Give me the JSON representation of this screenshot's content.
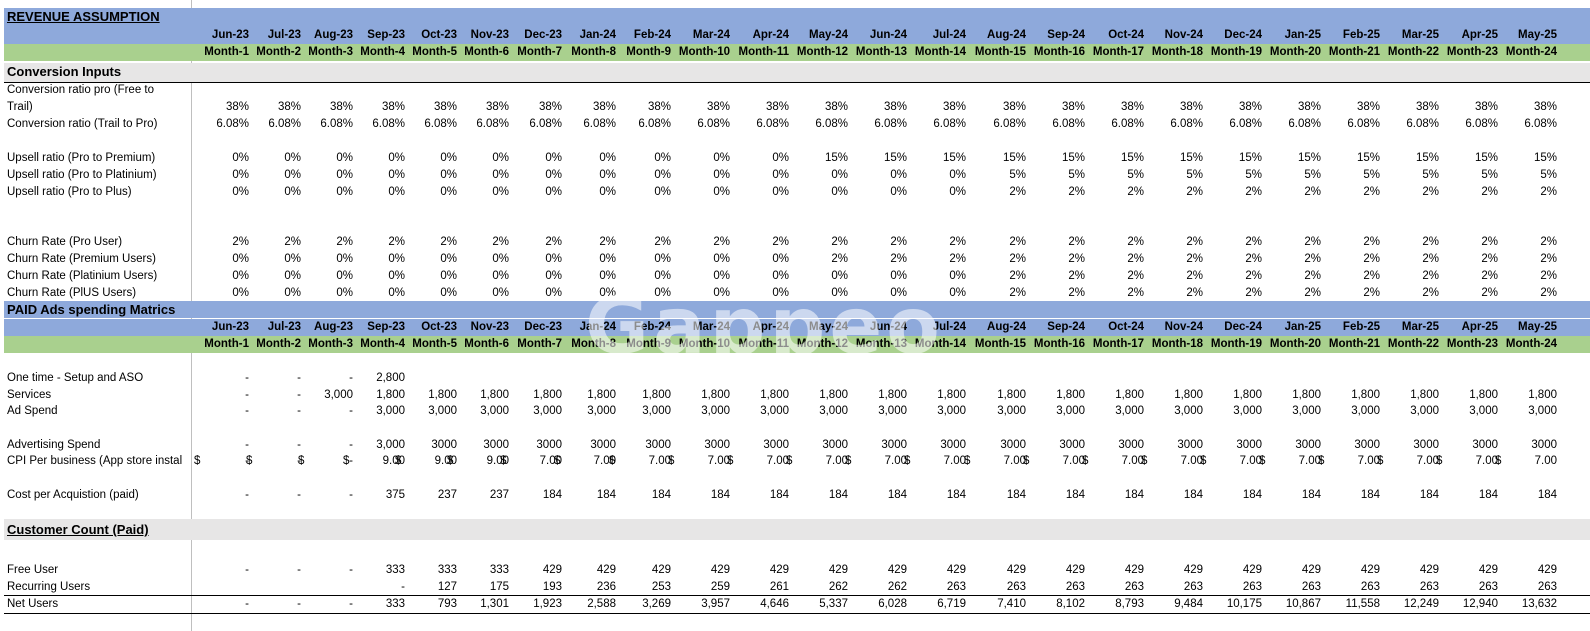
{
  "section_revenue": "REVENUE ASSUMPTION",
  "months": [
    "Jun-23",
    "Jul-23",
    "Aug-23",
    "Sep-23",
    "Oct-23",
    "Nov-23",
    "Dec-23",
    "Jan-24",
    "Feb-24",
    "Mar-24",
    "Apr-24",
    "May-24",
    "Jun-24",
    "Jul-24",
    "Aug-24",
    "Sep-24",
    "Oct-24",
    "Nov-24",
    "Dec-24",
    "Jan-25",
    "Feb-25",
    "Mar-25",
    "Apr-25",
    "May-25"
  ],
  "month_nums": [
    "Month-1",
    "Month-2",
    "Month-3",
    "Month-4",
    "Month-5",
    "Month-6",
    "Month-7",
    "Month-8",
    "Month-9",
    "Month-10",
    "Month-11",
    "Month-12",
    "Month-13",
    "Month-14",
    "Month-15",
    "Month-16",
    "Month-17",
    "Month-18",
    "Month-19",
    "Month-20",
    "Month-21",
    "Month-22",
    "Month-23",
    "Month-24"
  ],
  "conversion_title": "Conversion Inputs",
  "conv_pro_label_1": "Conversion ratio pro (Free to",
  "conv_pro_label_2": "Trail)",
  "rows_conversion": [
    {
      "label": "",
      "values": [
        "38%",
        "38%",
        "38%",
        "38%",
        "38%",
        "38%",
        "38%",
        "38%",
        "38%",
        "38%",
        "38%",
        "38%",
        "38%",
        "38%",
        "38%",
        "38%",
        "38%",
        "38%",
        "38%",
        "38%",
        "38%",
        "38%",
        "38%",
        "38%"
      ]
    },
    {
      "label": "Conversion ratio (Trail to Pro)",
      "values": [
        "6.08%",
        "6.08%",
        "6.08%",
        "6.08%",
        "6.08%",
        "6.08%",
        "6.08%",
        "6.08%",
        "6.08%",
        "6.08%",
        "6.08%",
        "6.08%",
        "6.08%",
        "6.08%",
        "6.08%",
        "6.08%",
        "6.08%",
        "6.08%",
        "6.08%",
        "6.08%",
        "6.08%",
        "6.08%",
        "6.08%",
        "6.08%"
      ]
    }
  ],
  "rows_upsell": [
    {
      "label": " Upsell ratio  (Pro to Premium)",
      "values": [
        "0%",
        "0%",
        "0%",
        "0%",
        "0%",
        "0%",
        "0%",
        "0%",
        "0%",
        "0%",
        "0%",
        "15%",
        "15%",
        "15%",
        "15%",
        "15%",
        "15%",
        "15%",
        "15%",
        "15%",
        "15%",
        "15%",
        "15%",
        "15%"
      ]
    },
    {
      "label": " Upsell ratio (Pro to Platinium)",
      "values": [
        "0%",
        "0%",
        "0%",
        "0%",
        "0%",
        "0%",
        "0%",
        "0%",
        "0%",
        "0%",
        "0%",
        "0%",
        "0%",
        "0%",
        "5%",
        "5%",
        "5%",
        "5%",
        "5%",
        "5%",
        "5%",
        "5%",
        "5%",
        "5%"
      ]
    },
    {
      "label": " Upsell ratio (Pro to Plus)",
      "values": [
        "0%",
        "0%",
        "0%",
        "0%",
        "0%",
        "0%",
        "0%",
        "0%",
        "0%",
        "0%",
        "0%",
        "0%",
        "0%",
        "0%",
        "2%",
        "2%",
        "2%",
        "2%",
        "2%",
        "2%",
        "2%",
        "2%",
        "2%",
        "2%"
      ]
    }
  ],
  "rows_churn": [
    {
      "label": "Churn Rate (Pro User)",
      "values": [
        "2%",
        "2%",
        "2%",
        "2%",
        "2%",
        "2%",
        "2%",
        "2%",
        "2%",
        "2%",
        "2%",
        "2%",
        "2%",
        "2%",
        "2%",
        "2%",
        "2%",
        "2%",
        "2%",
        "2%",
        "2%",
        "2%",
        "2%",
        "2%"
      ]
    },
    {
      "label": " Churn Rate (Premium Users)",
      "values": [
        "0%",
        "0%",
        "0%",
        "0%",
        "0%",
        "0%",
        "0%",
        "0%",
        "0%",
        "0%",
        "0%",
        "2%",
        "2%",
        "2%",
        "2%",
        "2%",
        "2%",
        "2%",
        "2%",
        "2%",
        "2%",
        "2%",
        "2%",
        "2%"
      ]
    },
    {
      "label": " Churn Rate (Platinium Users)",
      "values": [
        "0%",
        "0%",
        "0%",
        "0%",
        "0%",
        "0%",
        "0%",
        "0%",
        "0%",
        "0%",
        "0%",
        "0%",
        "0%",
        "0%",
        "2%",
        "2%",
        "2%",
        "2%",
        "2%",
        "2%",
        "2%",
        "2%",
        "2%",
        "2%"
      ]
    },
    {
      "label": " Churn Rate (PlUS Users)",
      "values": [
        "0%",
        "0%",
        "0%",
        "0%",
        "0%",
        "0%",
        "0%",
        "0%",
        "0%",
        "0%",
        "0%",
        "0%",
        "0%",
        "0%",
        "2%",
        "2%",
        "2%",
        "2%",
        "2%",
        "2%",
        "2%",
        "2%",
        "2%",
        "2%"
      ]
    }
  ],
  "section_paid": "PAID Ads spending Matrics",
  "rows_paid": [
    {
      "label": "One time - Setup and ASO",
      "values": [
        "-",
        "-",
        "-",
        "2,800",
        "",
        "",
        "",
        "",
        "",
        "",
        "",
        "",
        "",
        "",
        "",
        "",
        "",
        "",
        "",
        "",
        "",
        "",
        "",
        ""
      ]
    },
    {
      "label": "Services",
      "values": [
        "-",
        "-",
        "3,000",
        "1,800",
        "1,800",
        "1,800",
        "1,800",
        "1,800",
        "1,800",
        "1,800",
        "1,800",
        "1,800",
        "1,800",
        "1,800",
        "1,800",
        "1,800",
        "1,800",
        "1,800",
        "1,800",
        "1,800",
        "1,800",
        "1,800",
        "1,800",
        "1,800"
      ]
    },
    {
      "label": "Ad Spend",
      "values": [
        "-",
        "-",
        "-",
        "3,000",
        "3,000",
        "3,000",
        "3,000",
        "3,000",
        "3,000",
        "3,000",
        "3,000",
        "3,000",
        "3,000",
        "3,000",
        "3,000",
        "3,000",
        "3,000",
        "3,000",
        "3,000",
        "3,000",
        "3,000",
        "3,000",
        "3,000",
        "3,000"
      ]
    }
  ],
  "row_adv": {
    "label": "Advertising Spend",
    "values": [
      "-",
      "-",
      "-",
      "3,000",
      "3000",
      "3000",
      "3000",
      "3000",
      "3000",
      "3000",
      "3000",
      "3000",
      "3000",
      "3000",
      "3000",
      "3000",
      "3000",
      "3000",
      "3000",
      "3000",
      "3000",
      "3000",
      "3000",
      "3000"
    ]
  },
  "row_cpi": {
    "label": "CPI Per business (App store instal",
    "currency": "$",
    "values": [
      "-",
      "-",
      "-",
      "9.00",
      "9.00",
      "9.00",
      "7.00",
      "7.00",
      "7.00",
      "7.00",
      "7.00",
      "7.00",
      "7.00",
      "7.00",
      "7.00",
      "7.00",
      "7.00",
      "7.00",
      "7.00",
      "7.00",
      "7.00",
      "7.00",
      "7.00",
      "7.00"
    ]
  },
  "row_cpa": {
    "label": "Cost per Acquistion (paid)",
    "values": [
      "-",
      "-",
      "-",
      "375",
      "237",
      "237",
      "184",
      "184",
      "184",
      "184",
      "184",
      "184",
      "184",
      "184",
      "184",
      "184",
      "184",
      "184",
      "184",
      "184",
      "184",
      "184",
      "184",
      "184"
    ]
  },
  "section_customer": "Customer Count (Paid)",
  "rows_customer": [
    {
      "label": "Free User",
      "values": [
        "-",
        "-",
        "-",
        "333",
        "333",
        "333",
        "429",
        "429",
        "429",
        "429",
        "429",
        "429",
        "429",
        "429",
        "429",
        "429",
        "429",
        "429",
        "429",
        "429",
        "429",
        "429",
        "429",
        "429"
      ]
    },
    {
      "label": "Recurring Users",
      "values": [
        "",
        "",
        "",
        "-",
        "127",
        "175",
        "193",
        "236",
        "253",
        "259",
        "261",
        "262",
        "262",
        "263",
        "263",
        "263",
        "263",
        "263",
        "263",
        "263",
        "263",
        "263",
        "263",
        "263"
      ]
    }
  ],
  "row_net": {
    "label": "Net Users",
    "values": [
      "-",
      "-",
      "-",
      "333",
      "793",
      "1,301",
      "1,923",
      "2,588",
      "3,269",
      "3,957",
      "4,646",
      "5,337",
      "6,028",
      "6,719",
      "7,410",
      "8,102",
      "8,793",
      "9,484",
      "10,175",
      "10,867",
      "11,558",
      "12,249",
      "12,940",
      "13,632"
    ]
  },
  "watermark": "Gappeo"
}
